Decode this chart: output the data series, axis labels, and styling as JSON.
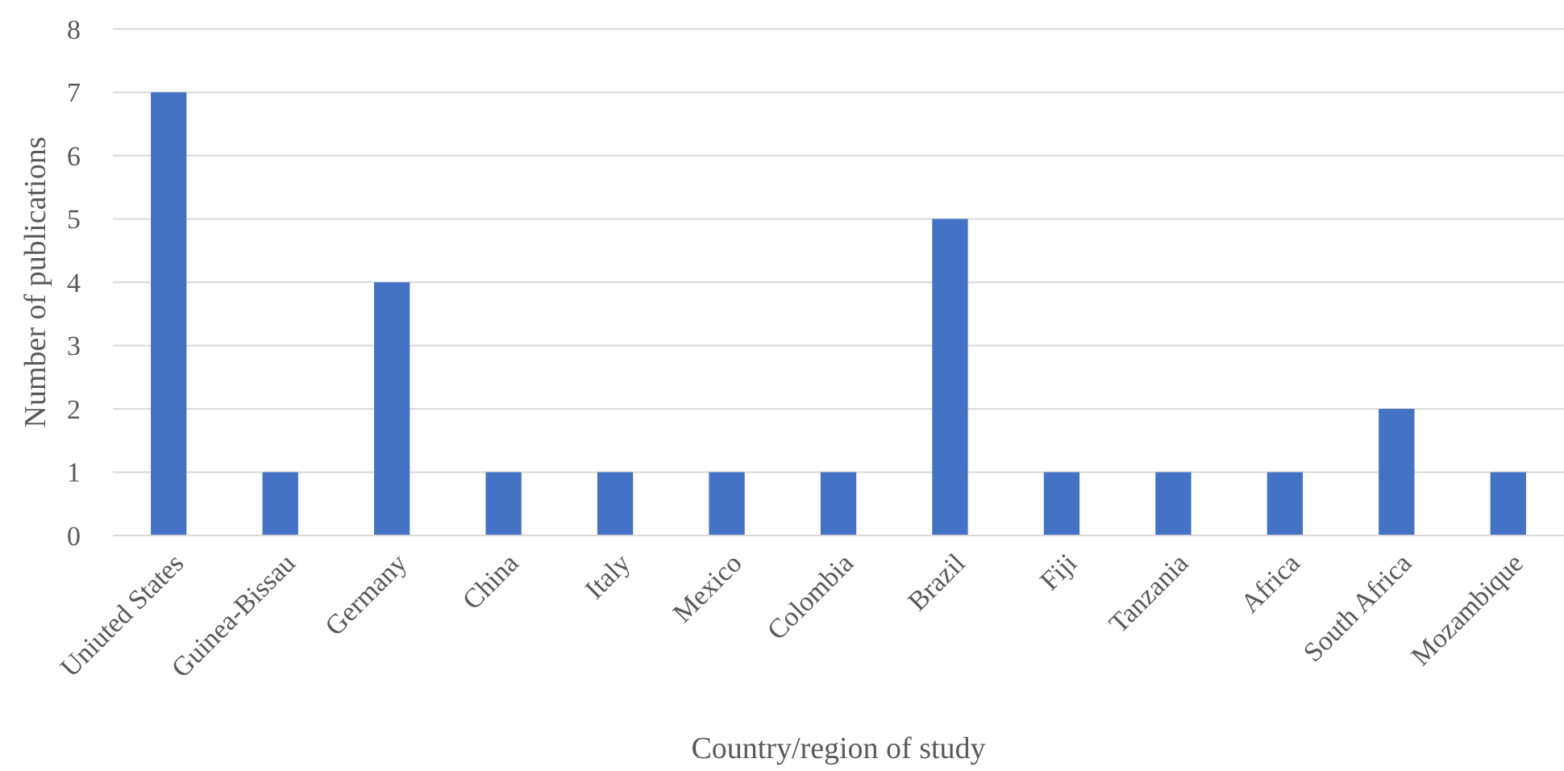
{
  "chart_data": {
    "type": "bar",
    "xlabel": "Country/region of study",
    "ylabel": "Number of publications",
    "categories": [
      "Uniuted States",
      "Guinea-Bissau",
      "Germany",
      "China",
      "Italy",
      "Mexico",
      "Colombia",
      "Brazil",
      "Fiji",
      "Tanzania",
      "Africa",
      "South Africa",
      "Mozambique"
    ],
    "values": [
      7,
      1,
      4,
      1,
      1,
      1,
      1,
      5,
      1,
      1,
      1,
      2,
      1
    ],
    "color": "#4472c4",
    "ylim": [
      0,
      8
    ],
    "yticks": [
      0,
      1,
      2,
      3,
      4,
      5,
      6,
      7,
      8
    ],
    "grid": "y"
  }
}
